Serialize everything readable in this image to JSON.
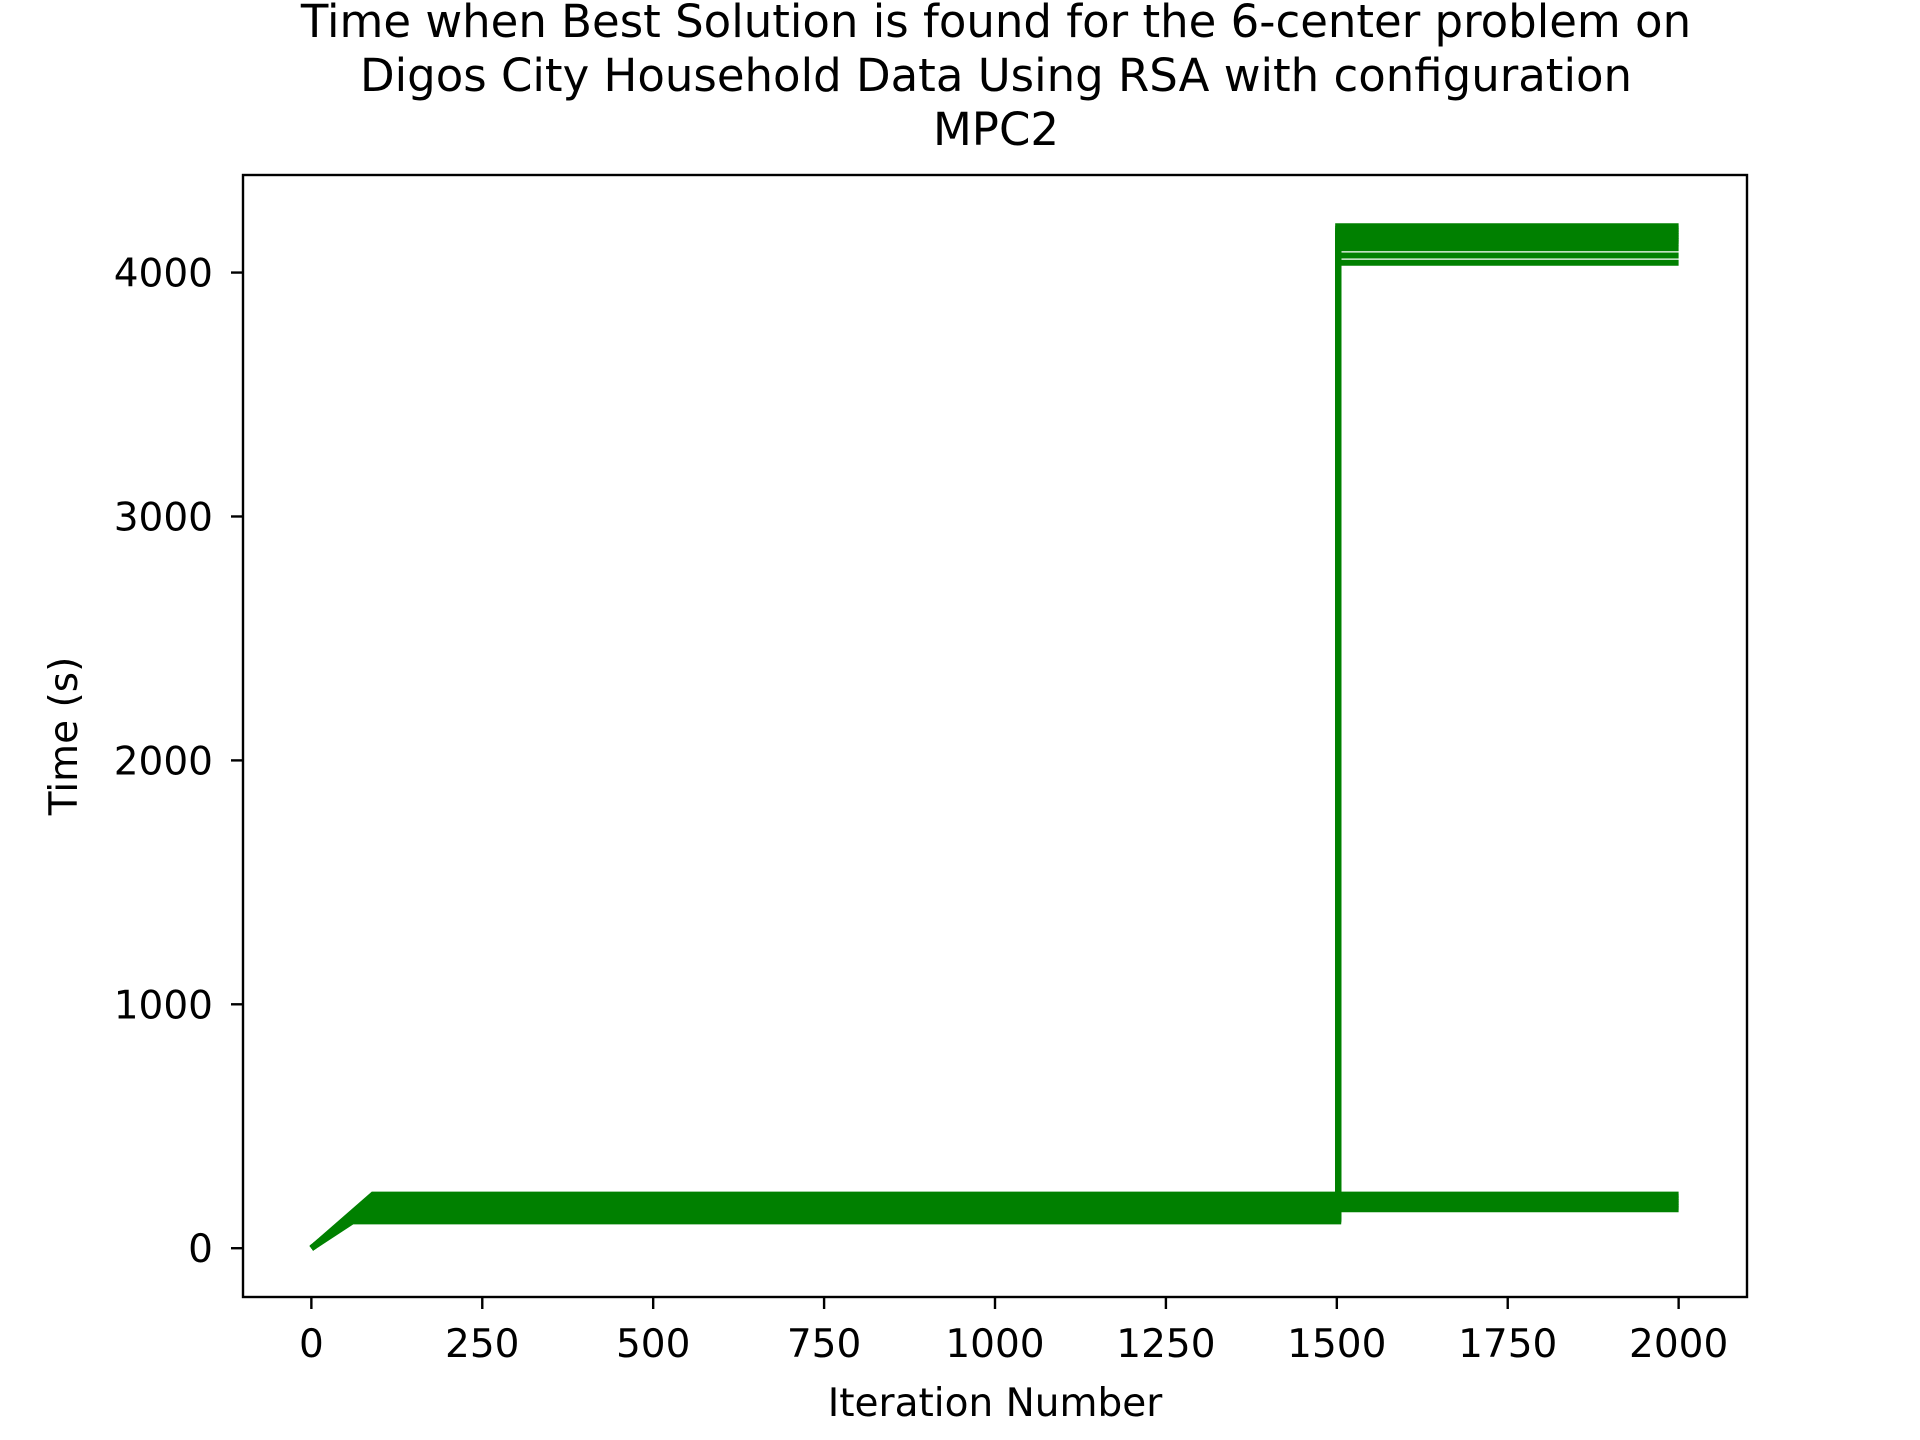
{
  "chart_data": {
    "type": "line",
    "title_lines": [
      "Time when Best Solution is found for the 6-center problem on",
      "Digos City Household Data Using RSA with configuration",
      "MPC2"
    ],
    "xlabel": "Iteration Number",
    "ylabel": "Time (s)",
    "xlim": [
      -100,
      2100
    ],
    "ylim": [
      -200,
      4400
    ],
    "xticks": [
      0,
      250,
      500,
      750,
      1000,
      1250,
      1500,
      1750,
      2000
    ],
    "xtick_labels": [
      "0",
      "250",
      "500",
      "750",
      "1000",
      "1250",
      "1500",
      "1750",
      "2000"
    ],
    "yticks": [
      0,
      1000,
      2000,
      3000,
      4000
    ],
    "ytick_labels": [
      "0",
      "1000",
      "2000",
      "3000",
      "4000"
    ],
    "grid": false,
    "legend": "none",
    "line_color": "#008000",
    "series": [
      {
        "x": [
          0,
          80,
          1500,
          2000
        ],
        "y": [
          0,
          160,
          160,
          160
        ]
      },
      {
        "x": [
          0,
          85,
          1500,
          2000
        ],
        "y": [
          0,
          170,
          170,
          170
        ]
      },
      {
        "x": [
          0,
          90,
          1500,
          2000
        ],
        "y": [
          0,
          180,
          180,
          180
        ]
      },
      {
        "x": [
          0,
          90,
          1500,
          2000
        ],
        "y": [
          0,
          190,
          190,
          190
        ]
      },
      {
        "x": [
          0,
          90,
          1500,
          2000
        ],
        "y": [
          0,
          200,
          200,
          200
        ]
      },
      {
        "x": [
          0,
          90,
          1500,
          2000
        ],
        "y": [
          0,
          210,
          210,
          210
        ]
      },
      {
        "x": [
          0,
          90,
          1500,
          2000
        ],
        "y": [
          0,
          220,
          220,
          220
        ]
      },
      {
        "x": [
          0,
          60,
          1502,
          1502,
          2000
        ],
        "y": [
          0,
          110,
          110,
          4040,
          4040
        ]
      },
      {
        "x": [
          0,
          60,
          1502,
          1502,
          2000
        ],
        "y": [
          0,
          115,
          115,
          4070,
          4070
        ]
      },
      {
        "x": [
          0,
          60,
          1502,
          1502,
          2000
        ],
        "y": [
          0,
          120,
          120,
          4100,
          4100
        ]
      },
      {
        "x": [
          0,
          60,
          1502,
          1502,
          2000
        ],
        "y": [
          0,
          120,
          120,
          4120,
          4120
        ]
      },
      {
        "x": [
          0,
          60,
          1502,
          1502,
          2000
        ],
        "y": [
          0,
          125,
          125,
          4130,
          4130
        ]
      },
      {
        "x": [
          0,
          60,
          1502,
          1502,
          2000
        ],
        "y": [
          0,
          125,
          125,
          4140,
          4140
        ]
      },
      {
        "x": [
          0,
          60,
          1502,
          1502,
          2000
        ],
        "y": [
          0,
          130,
          130,
          4150,
          4150
        ]
      },
      {
        "x": [
          0,
          60,
          1502,
          1502,
          2000
        ],
        "y": [
          0,
          130,
          130,
          4160,
          4160
        ]
      },
      {
        "x": [
          0,
          60,
          1502,
          1502,
          2000
        ],
        "y": [
          0,
          135,
          135,
          4170,
          4170
        ]
      },
      {
        "x": [
          0,
          60,
          1502,
          1502,
          2000
        ],
        "y": [
          0,
          135,
          135,
          4180,
          4180
        ]
      },
      {
        "x": [
          0,
          60,
          1502,
          1502,
          2000
        ],
        "y": [
          0,
          140,
          140,
          4190,
          4190
        ]
      }
    ]
  }
}
